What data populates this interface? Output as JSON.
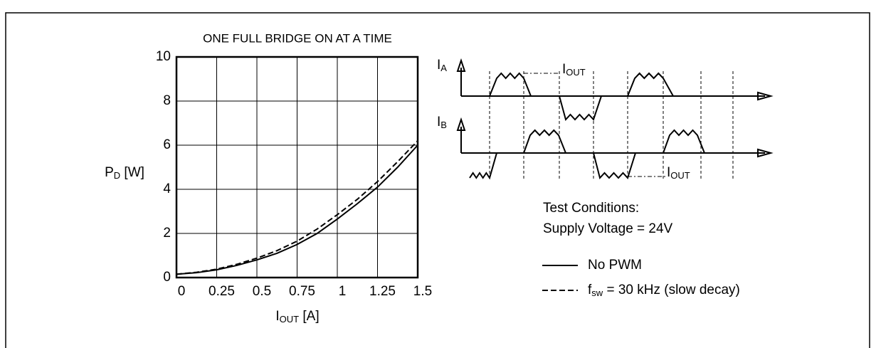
{
  "chart_data": {
    "type": "line",
    "title": "ONE FULL BRIDGE ON AT A TIME",
    "x_label": [
      "I",
      "OUT",
      " [A]"
    ],
    "y_label": [
      "P",
      "D",
      " [W]"
    ],
    "x": [
      0,
      0.125,
      0.25,
      0.375,
      0.5,
      0.625,
      0.75,
      0.875,
      1,
      1.125,
      1.25,
      1.375,
      1.5
    ],
    "series": [
      {
        "name": "No PWM",
        "color": "#000000",
        "dash": "solid",
        "values": [
          0.15,
          0.22,
          0.35,
          0.55,
          0.8,
          1.1,
          1.5,
          2.0,
          2.65,
          3.35,
          4.1,
          5.0,
          6.0
        ]
      },
      {
        "name": [
          "f",
          "sw",
          " = 30 kHz (slow decay)"
        ],
        "color": "#000000",
        "dash": "dashed",
        "values": [
          0.15,
          0.24,
          0.38,
          0.6,
          0.88,
          1.22,
          1.65,
          2.2,
          2.85,
          3.55,
          4.35,
          5.25,
          6.2
        ]
      }
    ],
    "xlim": [
      0,
      1.5
    ],
    "xticks": [
      0,
      0.25,
      0.5,
      0.75,
      1,
      1.25,
      1.5
    ],
    "ylim": [
      0,
      10
    ],
    "yticks": [
      0,
      2,
      4,
      6,
      8,
      10
    ],
    "grid": true
  },
  "diagram": {
    "ia": [
      "I",
      "A"
    ],
    "ib": [
      "I",
      "B"
    ],
    "iout_labels": [
      [
        "I",
        "OUT"
      ],
      [
        "I",
        "OUT"
      ]
    ],
    "test_conditions": [
      "Test Conditions:",
      "Supply Voltage = 24V"
    ]
  }
}
